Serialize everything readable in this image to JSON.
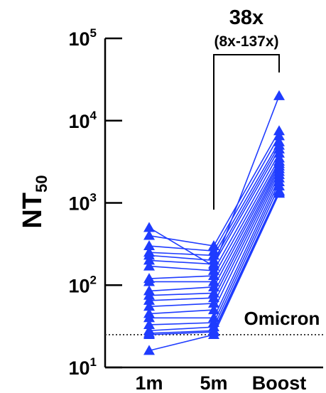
{
  "chart_data": {
    "type": "line",
    "title": "",
    "xlabel": "",
    "ylabel": "NT50",
    "ylabel_main": "NT",
    "ylabel_sub": "50",
    "y_scale": "log",
    "ylim": [
      10,
      100000
    ],
    "y_ticks": [
      {
        "base": "10",
        "exp": "1"
      },
      {
        "base": "10",
        "exp": "2"
      },
      {
        "base": "10",
        "exp": "3"
      },
      {
        "base": "10",
        "exp": "4"
      },
      {
        "base": "10",
        "exp": "5"
      }
    ],
    "categories": [
      "1m",
      "5m",
      "Boost"
    ],
    "marker": "triangle",
    "color": "#1f3cff",
    "reference_line": {
      "label": "Omicron",
      "value": 25,
      "style": "dotted",
      "color": "#333333"
    },
    "annotation": {
      "fold": "38x",
      "ci": "(8x-137x)",
      "between": [
        "5m",
        "Boost"
      ]
    },
    "series": [
      {
        "values": [
          500,
          170,
          20000
        ]
      },
      {
        "values": [
          400,
          300,
          7500
        ]
      },
      {
        "values": [
          300,
          260,
          6500
        ]
      },
      {
        "values": [
          250,
          230,
          5500
        ]
      },
      {
        "values": [
          230,
          200,
          5000
        ]
      },
      {
        "values": [
          200,
          180,
          4500
        ]
      },
      {
        "values": [
          170,
          150,
          4000
        ]
      },
      {
        "values": [
          120,
          130,
          3500
        ]
      },
      {
        "values": [
          110,
          110,
          3200
        ]
      },
      {
        "values": [
          85,
          95,
          3000
        ]
      },
      {
        "values": [
          75,
          80,
          2800
        ]
      },
      {
        "values": [
          65,
          70,
          2600
        ]
      },
      {
        "values": [
          55,
          60,
          2400
        ]
      },
      {
        "values": [
          45,
          50,
          2200
        ]
      },
      {
        "values": [
          40,
          40,
          2000
        ]
      },
      {
        "values": [
          33,
          35,
          1800
        ]
      },
      {
        "values": [
          28,
          31,
          1600
        ]
      },
      {
        "values": [
          26,
          28,
          1400
        ]
      },
      {
        "values": [
          25,
          27,
          1350
        ]
      },
      {
        "values": [
          16,
          25,
          1300
        ]
      }
    ]
  }
}
